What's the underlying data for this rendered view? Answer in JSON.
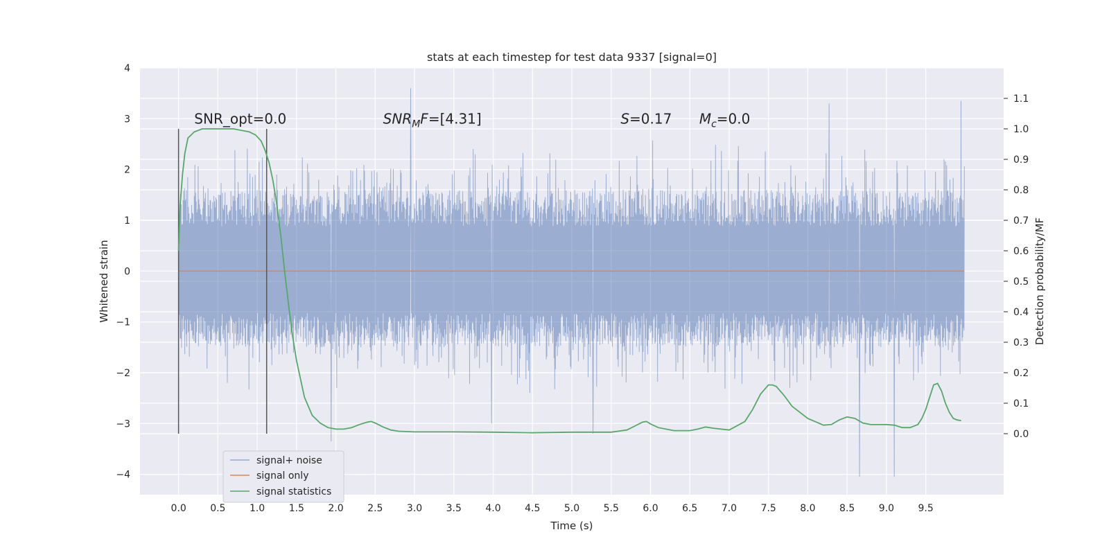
{
  "chart_data": {
    "type": "line",
    "title": "stats at each timestep for test data 9337 [signal=0]",
    "xlabel": "Time (s)",
    "ylabel": "Whitened strain",
    "ylabel_right": "Detection probability/MF",
    "xlim": [
      -0.49,
      10.49
    ],
    "ylim": [
      -4.4,
      4.0
    ],
    "ylim_right": [
      -0.2,
      1.2
    ],
    "x_ticks": [
      0.0,
      0.5,
      1.0,
      1.5,
      2.0,
      2.5,
      3.0,
      3.5,
      4.0,
      4.5,
      5.0,
      5.5,
      6.0,
      6.5,
      7.0,
      7.5,
      8.0,
      8.5,
      9.0,
      9.5
    ],
    "x_tick_labels": [
      "0.0",
      "0.5",
      "1.0",
      "1.5",
      "2.0",
      "2.5",
      "3.0",
      "3.5",
      "4.0",
      "4.5",
      "5.0",
      "5.5",
      "6.0",
      "6.5",
      "7.0",
      "7.5",
      "8.0",
      "8.5",
      "9.0",
      "9.5"
    ],
    "y_ticks": [
      4,
      3,
      2,
      1,
      0,
      -1,
      -2,
      -3,
      -4
    ],
    "y_tick_labels": [
      "4",
      "3",
      "2",
      "1",
      "0",
      "−1",
      "−2",
      "−3",
      "−4"
    ],
    "y_ticks_right": [
      1.1,
      1.0,
      0.9,
      0.8,
      0.7,
      0.6,
      0.5,
      0.4,
      0.3,
      0.2,
      0.1,
      0.0
    ],
    "y_tick_labels_right": [
      "1.1",
      "1.0",
      "0.9",
      "0.8",
      "0.7",
      "0.6",
      "0.5",
      "0.4",
      "0.3",
      "0.2",
      "0.1",
      "0.0"
    ],
    "grid": true,
    "legend_position": "lower-left",
    "series": [
      {
        "name": "signal+ noise",
        "color": "#4c72b0",
        "axis": "left",
        "style": "dense noise trace",
        "x_range": [
          0.0,
          9.99
        ],
        "typical_range": [
          -1.5,
          1.6
        ],
        "peaks": [
          {
            "x": 2.95,
            "y": 3.6
          },
          {
            "x": 8.27,
            "y": 3.3
          },
          {
            "x": 9.95,
            "y": 3.35
          },
          {
            "x": 1.94,
            "y": -3.35
          },
          {
            "x": 5.27,
            "y": -3.2
          },
          {
            "x": 8.66,
            "y": -4.05
          },
          {
            "x": 9.1,
            "y": -4.05
          },
          {
            "x": 3.98,
            "y": -3.0
          }
        ]
      },
      {
        "name": "signal only",
        "color": "#dd8452",
        "axis": "left",
        "x": [
          0.0,
          9.99
        ],
        "y": [
          0.0,
          0.0
        ]
      },
      {
        "name": "signal statistics",
        "color": "#55a868",
        "axis": "right",
        "x": [
          0.0,
          0.02,
          0.05,
          0.08,
          0.12,
          0.2,
          0.3,
          0.5,
          0.7,
          0.9,
          0.98,
          1.05,
          1.1,
          1.15,
          1.2,
          1.25,
          1.3,
          1.35,
          1.4,
          1.45,
          1.5,
          1.55,
          1.6,
          1.65,
          1.7,
          1.8,
          1.9,
          2.0,
          2.1,
          2.2,
          2.3,
          2.4,
          2.45,
          2.5,
          2.6,
          2.7,
          2.8,
          3.0,
          3.5,
          4.0,
          4.5,
          5.0,
          5.5,
          5.7,
          5.8,
          5.9,
          5.95,
          6.0,
          6.1,
          6.3,
          6.5,
          6.6,
          6.7,
          6.8,
          7.0,
          7.2,
          7.3,
          7.4,
          7.5,
          7.55,
          7.6,
          7.7,
          7.8,
          8.0,
          8.2,
          8.3,
          8.4,
          8.5,
          8.6,
          8.7,
          8.8,
          9.0,
          9.1,
          9.2,
          9.3,
          9.4,
          9.45,
          9.5,
          9.55,
          9.6,
          9.65,
          9.7,
          9.75,
          9.8,
          9.85,
          9.9,
          9.95
        ],
        "y": [
          0.6,
          0.75,
          0.85,
          0.92,
          0.97,
          0.99,
          1.0,
          1.0,
          1.0,
          0.99,
          0.98,
          0.96,
          0.93,
          0.89,
          0.83,
          0.75,
          0.65,
          0.53,
          0.42,
          0.32,
          0.24,
          0.18,
          0.12,
          0.09,
          0.06,
          0.035,
          0.02,
          0.015,
          0.015,
          0.02,
          0.03,
          0.038,
          0.04,
          0.035,
          0.022,
          0.012,
          0.008,
          0.006,
          0.006,
          0.005,
          0.003,
          0.005,
          0.005,
          0.012,
          0.025,
          0.038,
          0.04,
          0.032,
          0.02,
          0.01,
          0.01,
          0.015,
          0.022,
          0.018,
          0.012,
          0.04,
          0.08,
          0.13,
          0.16,
          0.16,
          0.155,
          0.125,
          0.09,
          0.05,
          0.028,
          0.03,
          0.045,
          0.055,
          0.05,
          0.035,
          0.03,
          0.03,
          0.028,
          0.02,
          0.02,
          0.03,
          0.05,
          0.08,
          0.12,
          0.16,
          0.165,
          0.14,
          0.1,
          0.07,
          0.05,
          0.045,
          0.043
        ]
      }
    ],
    "vertical_lines": [
      {
        "x": 0.0,
        "y": [
          -3.2,
          2.8
        ],
        "color": "#555555"
      },
      {
        "x": 1.12,
        "y": [
          -3.2,
          2.8
        ],
        "color": "#555555"
      }
    ],
    "annotations": [
      {
        "id": "snr-opt",
        "x": 0.2,
        "y": 2.9,
        "parts": [
          {
            "text": "SNR_opt=0.0"
          }
        ]
      },
      {
        "id": "snr-mf",
        "x": 2.6,
        "y": 2.9,
        "parts": [
          {
            "text": "SNR",
            "italic": true
          },
          {
            "text": "M",
            "italic": true,
            "sub": true
          },
          {
            "text": "F",
            "italic": true
          },
          {
            "text": "=[4.31]"
          }
        ]
      },
      {
        "id": "s-value",
        "x": 5.62,
        "y": 2.9,
        "parts": [
          {
            "text": "S",
            "italic": true
          },
          {
            "text": "=0.17"
          }
        ]
      },
      {
        "id": "mc-value",
        "x": 6.62,
        "y": 2.9,
        "parts": [
          {
            "text": "M",
            "italic": true
          },
          {
            "text": "c",
            "italic": true,
            "sub": true
          },
          {
            "text": "=0.0"
          }
        ]
      }
    ]
  }
}
